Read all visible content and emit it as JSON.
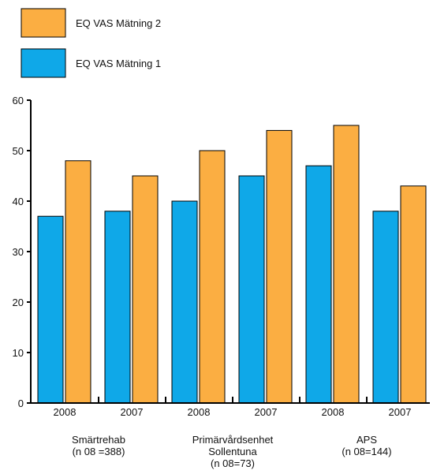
{
  "chart_data": {
    "type": "bar",
    "title": "",
    "xlabel": "",
    "ylabel": "",
    "ylim": [
      0,
      60
    ],
    "yticks": [
      0,
      10,
      20,
      30,
      40,
      50,
      60
    ],
    "grid": false,
    "legend_position": "top-left",
    "categories": [
      "2008",
      "2007",
      "2008",
      "2007",
      "2008",
      "2007"
    ],
    "groups": [
      {
        "lines": [
          "Smärtrehab",
          "(n 08 =388)"
        ]
      },
      {
        "lines": [
          "Primärvårdsenhet",
          "Sollentuna",
          "(n 08=73)"
        ]
      },
      {
        "lines": [
          "APS",
          "(n 08=144)"
        ]
      }
    ],
    "series": [
      {
        "name": "EQ VAS Mätning 1",
        "color": "#0fa8e8",
        "values": [
          37,
          38,
          40,
          45,
          47,
          38
        ]
      },
      {
        "name": "EQ VAS Mätning 2",
        "color": "#fbae42",
        "values": [
          48,
          45,
          50,
          54,
          55,
          43
        ]
      }
    ],
    "legend_order": [
      1,
      0
    ]
  }
}
